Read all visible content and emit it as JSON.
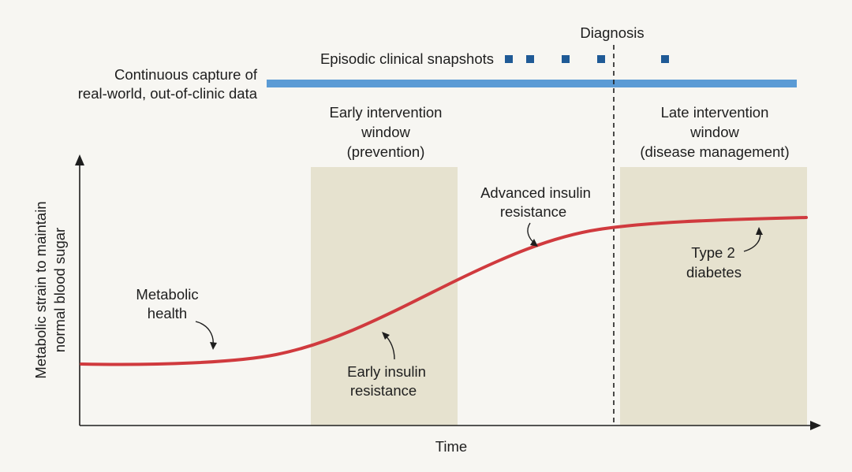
{
  "colors": {
    "background": "#f7f6f2",
    "window_fill": "#e6e2cf",
    "curve": "#d03a3e",
    "capture_bar": "#5b9bd5",
    "snapshot": "#1f5a96",
    "axis": "#1e1e1e"
  },
  "labels": {
    "diagnosis": "Diagnosis",
    "snapshots": "Episodic clinical snapshots",
    "continuous_line1": "Continuous capture of",
    "continuous_line2": "real-world, out-of-clinic data",
    "early_window_line1": "Early intervention",
    "early_window_line2": "window",
    "early_window_line3": "(prevention)",
    "late_window_line1": "Late intervention",
    "late_window_line2": "window",
    "late_window_line3": "(disease management)",
    "y_axis_line1": "Metabolic strain to maintain",
    "y_axis_line2": "normal blood sugar",
    "x_axis": "Time"
  },
  "stages": {
    "metabolic_health": [
      "Metabolic",
      "health"
    ],
    "early_insulin_resistance": [
      "Early insulin",
      "resistance"
    ],
    "advanced_insulin_resistance": [
      "Advanced insulin",
      "resistance"
    ],
    "type2_diabetes": [
      "Type 2",
      "diabetes"
    ]
  },
  "snapshot_count": 5
}
